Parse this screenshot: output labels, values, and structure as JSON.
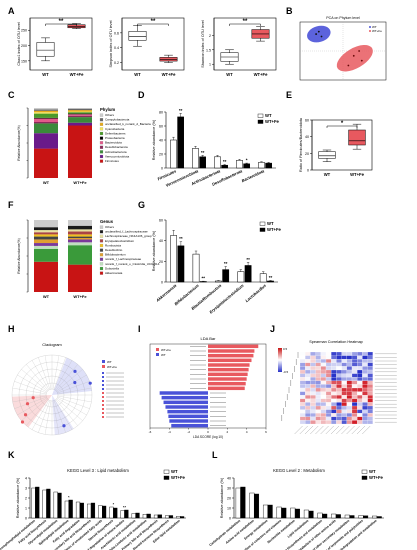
{
  "panels": [
    {
      "letter": "A"
    },
    {
      "letter": "B"
    },
    {
      "letter": "C"
    },
    {
      "letter": "D"
    },
    {
      "letter": "E"
    },
    {
      "letter": "F"
    },
    {
      "letter": "G"
    },
    {
      "letter": "H"
    },
    {
      "letter": "I"
    },
    {
      "letter": "J"
    },
    {
      "letter": "K"
    },
    {
      "letter": "L"
    }
  ],
  "groups": {
    "wt": "WT",
    "fe": "WT+Fe"
  },
  "colors": {
    "wt": "#ffffff",
    "fe": "#000000",
    "red": "#e8595f",
    "blue": "#4a52d8",
    "purple": "#6a1a8a"
  },
  "chart_data": [
    {
      "id": "A1",
      "type": "boxplot",
      "ylabel": "Chao1 index of OTU level",
      "categories": [
        "WT",
        "WT+Fe"
      ],
      "boxes": [
        {
          "min": 150,
          "q1": 165,
          "median": 185,
          "q3": 210,
          "max": 225
        },
        {
          "min": 255,
          "q1": 258,
          "median": 262,
          "q3": 268,
          "max": 272
        }
      ],
      "ylim": [
        120,
        290
      ],
      "yticks": [
        150,
        200,
        250
      ],
      "significance": "**",
      "colors": [
        "#ffffff",
        "#e8595f"
      ]
    },
    {
      "id": "A2",
      "type": "boxplot",
      "ylabel": "Simpson index of OTU level",
      "categories": [
        "WT",
        "WT+Fe"
      ],
      "boxes": [
        {
          "min": 0.42,
          "q1": 0.5,
          "median": 0.55,
          "q3": 0.62,
          "max": 0.7
        },
        {
          "min": 0.2,
          "q1": 0.22,
          "median": 0.24,
          "q3": 0.27,
          "max": 0.3
        }
      ],
      "ylim": [
        0.1,
        0.8
      ],
      "yticks": [
        0.2,
        0.4,
        0.6
      ],
      "significance": "**",
      "colors": [
        "#ffffff",
        "#e8595f"
      ]
    },
    {
      "id": "A3",
      "type": "boxplot",
      "ylabel": "Shannon index of OTU level",
      "categories": [
        "WT",
        "WT+Fe"
      ],
      "boxes": [
        {
          "min": 1.0,
          "q1": 1.1,
          "median": 1.25,
          "q3": 1.4,
          "max": 1.5
        },
        {
          "min": 1.8,
          "q1": 1.9,
          "median": 2.05,
          "q3": 2.2,
          "max": 2.3
        }
      ],
      "ylim": [
        0.8,
        2.6
      ],
      "yticks": [
        1.0,
        1.5,
        2.0
      ],
      "significance": "**",
      "colors": [
        "#ffffff",
        "#e8595f"
      ]
    },
    {
      "id": "B",
      "type": "scatter",
      "title": "PCA on Phylum level",
      "legend": [
        "WT",
        "WT+Fe"
      ],
      "series": [
        {
          "name": "WT",
          "points": [
            [
              -0.5,
              0.35
            ],
            [
              -0.4,
              0.3
            ],
            [
              -0.45,
              0.4
            ]
          ],
          "color": "#4a52d8"
        },
        {
          "name": "WT+Fe",
          "points": [
            [
              0.2,
              -0.1
            ],
            [
              0.35,
              -0.2
            ],
            [
              0.1,
              -0.3
            ],
            [
              0.3,
              0.0
            ]
          ],
          "color": "#e8595f"
        }
      ]
    },
    {
      "id": "C",
      "type": "stacked-bar",
      "legend_title": "Phylum",
      "categories": [
        "WT",
        "WT+Fe"
      ],
      "series": [
        {
          "name": "Others",
          "color": "#cccccc",
          "values": [
            2,
            1
          ]
        },
        {
          "name": "Campylobacterota",
          "color": "#666666",
          "values": [
            2,
            2
          ]
        },
        {
          "name": "unclassified_k_norank_d_Bacteria",
          "color": "#e5a91b",
          "values": [
            2,
            2
          ]
        },
        {
          "name": "Cyanobacteria",
          "color": "#f3e45c",
          "values": [
            2,
            1
          ]
        },
        {
          "name": "Deferribacteres",
          "color": "#4a9a2a",
          "values": [
            6,
            2
          ]
        },
        {
          "name": "Proteobacteria",
          "color": "#000000",
          "values": [
            1,
            1
          ]
        },
        {
          "name": "Bacteroidota",
          "color": "#e05a8a",
          "values": [
            5,
            2
          ]
        },
        {
          "name": "Desulfobacterota",
          "color": "#8a2a5a",
          "values": [
            2,
            2
          ]
        },
        {
          "name": "Actinobacteriota",
          "color": "#3a8a3a",
          "values": [
            14,
            8
          ]
        },
        {
          "name": "Verrucomicrobiota",
          "color": "#6a1a8a",
          "values": [
            22,
            4
          ]
        },
        {
          "name": "Firmicutes",
          "color": "#c81414",
          "values": [
            42,
            75
          ]
        }
      ],
      "ylabel": "Relative Abundance(%)"
    },
    {
      "id": "D",
      "type": "bar",
      "ylabel": "Relative abundance (%)",
      "categories": [
        "Firmicutes",
        "Verrucomicrobiota",
        "Actinobacteriota",
        "Desulfobacterota",
        "Bacteroidota"
      ],
      "series": [
        {
          "name": "WT",
          "values": [
            40,
            28,
            16,
            11,
            8
          ]
        },
        {
          "name": "WT+Fe",
          "values": [
            73,
            16,
            4,
            6,
            7
          ]
        }
      ],
      "errors": [
        [
          4,
          3,
          2,
          1.5,
          1
        ],
        [
          5,
          2,
          1,
          1,
          1
        ]
      ],
      "labels": [
        "**",
        "**",
        "**",
        "*",
        ""
      ],
      "ylim": [
        0,
        80
      ],
      "yticks": [
        0,
        20,
        40,
        60,
        80
      ]
    },
    {
      "id": "E",
      "type": "boxplot",
      "ylabel": "Ratio of Firmicutes/Bacteroidota",
      "categories": [
        "WT",
        "WT+Fe"
      ],
      "boxes": [
        {
          "min": 10,
          "q1": 14,
          "median": 17,
          "q3": 22,
          "max": 24
        },
        {
          "min": 25,
          "q1": 30,
          "median": 35,
          "q3": 48,
          "max": 55
        }
      ],
      "ylim": [
        0,
        60
      ],
      "yticks": [
        0,
        20,
        40,
        60
      ],
      "significance": "*",
      "colors": [
        "#ffffff",
        "#e8595f"
      ]
    },
    {
      "id": "F",
      "type": "stacked-bar",
      "legend_title": "Genus",
      "categories": [
        "WT",
        "WT+Fe"
      ],
      "series": [
        {
          "name": "Others",
          "color": "#cccccc",
          "values": [
            10,
            8
          ]
        },
        {
          "name": "unclassified_f_Lachnospiraceae",
          "color": "#1a1a1a",
          "values": [
            4,
            5
          ]
        },
        {
          "name": "Lachnospiraceae_NK4A136_group",
          "color": "#e8e0a0",
          "values": [
            3,
            3
          ]
        },
        {
          "name": "Erysipelatoclostridium",
          "color": "#a44",
          "values": [
            3,
            4
          ]
        },
        {
          "name": "Romboutsia",
          "color": "#f0c020",
          "values": [
            3,
            3
          ]
        },
        {
          "name": "Desulfovibrio",
          "color": "#444",
          "values": [
            4,
            2
          ]
        },
        {
          "name": "Bifidobacterium",
          "color": "#e0a030",
          "values": [
            5,
            2
          ]
        },
        {
          "name": "norank_f_Lachnospiraceae",
          "color": "#7a3a9a",
          "values": [
            4,
            4
          ]
        },
        {
          "name": "norank_f_norank_o_Clostridia_UCG-014",
          "color": "#c0e0c0",
          "values": [
            4,
            4
          ]
        },
        {
          "name": "Dubosiella",
          "color": "#3a9a3a",
          "values": [
            18,
            27
          ]
        },
        {
          "name": "Akkermansia",
          "color": "#c81414",
          "values": [
            42,
            38
          ]
        }
      ],
      "ylabel": "Relative Abundance(%)"
    },
    {
      "id": "G",
      "type": "bar",
      "ylabel": "Relative abundance (%)",
      "categories": [
        "Akkermansia",
        "Bifidobacterium",
        "Blautia/Romboutsia",
        "Erysipelatoclostridium",
        "Lactobacillus"
      ],
      "series": [
        {
          "name": "WT",
          "values": [
            45,
            27,
            1,
            10,
            8
          ]
        },
        {
          "name": "WT+Fe",
          "values": [
            35,
            0.5,
            12,
            16,
            1
          ]
        }
      ],
      "errors": [
        [
          5,
          3,
          0.5,
          2,
          2
        ],
        [
          4,
          0.3,
          3,
          3,
          0.5
        ]
      ],
      "labels": [
        "**",
        "**",
        "**",
        "**",
        "**"
      ],
      "ylim": [
        0,
        60
      ],
      "yticks": [
        0,
        20,
        40,
        60
      ]
    },
    {
      "id": "H",
      "type": "cladogram",
      "title": "Cladogram",
      "legend": [
        "WT",
        "WT+Fe"
      ]
    },
    {
      "id": "I",
      "type": "bar",
      "title": "LDA Bar",
      "orientation": "horizontal",
      "series": [
        {
          "name": "WT+Fe",
          "color": "#e8595f",
          "values": [
            5.2,
            4.8,
            4.7,
            4.5,
            4.3,
            4.2,
            4.1,
            4.0,
            3.9,
            3.8
          ]
        },
        {
          "name": "WT",
          "color": "#4a52d8",
          "values": [
            -5.0,
            -4.8,
            -4.6,
            -4.4,
            -4.2,
            -4.1,
            -4.0,
            -3.8
          ]
        }
      ],
      "xlabel": "LDA SCORE (log 10)",
      "xlim": [
        -6,
        6
      ]
    },
    {
      "id": "J",
      "type": "heatmap",
      "title": "Spearman Correlation Heatmap",
      "colorscale": [
        -0.5,
        0.5
      ]
    },
    {
      "id": "K",
      "type": "bar",
      "title": "KEGG Level 3 : Lipid metabolism",
      "ylabel": "Relative abundance (%)",
      "categories": [
        "Glycerophospholipid metabolism",
        "Fatty acid biosynthesis",
        "Glycerolipid metabolism",
        "Sphingolipid metabolism",
        "Fatty acid degradation",
        "Secondary bile acid biosynthesis",
        "Biosynthesis of unsaturated fatty acids",
        "Steroid biosynthesis",
        "Synthesis and degradation of ketone bodies",
        "Arachidonic acid metabolism",
        "alpha-Linolenic acid metabolism",
        "Primary bile acid biosynthesis",
        "Steroid hormone biosynthesis",
        "Ether lipid metabolism"
      ],
      "series": [
        {
          "name": "WT",
          "values": [
            3.0,
            2.8,
            2.6,
            1.7,
            1.6,
            1.4,
            1.25,
            1.1,
            0.75,
            0.45,
            0.38,
            0.3,
            0.22,
            0.18
          ]
        },
        {
          "name": "WT+Fe",
          "values": [
            3.1,
            2.9,
            2.5,
            1.8,
            1.5,
            1.5,
            1.2,
            1.0,
            0.8,
            0.5,
            0.4,
            0.32,
            0.25,
            0.15
          ]
        }
      ],
      "labels": [
        "",
        "",
        "",
        "*",
        "",
        "",
        "",
        "*",
        "**",
        "",
        "",
        "",
        "",
        ""
      ],
      "ylim": [
        0,
        4
      ],
      "yticks": [
        0,
        1,
        2,
        3,
        4
      ]
    },
    {
      "id": "L",
      "type": "bar",
      "title": "KEGG Level 2 : Metabolism",
      "ylabel": "Relative abundance (%)",
      "categories": [
        "Carbohydrate metabolism",
        "Amino acid metabolism",
        "Energy metabolism",
        "Metabolism of cofactors and vitamins",
        "Nucleotide metabolism",
        "Lipid metabolism",
        "Glycan biosynthesis and metabolism",
        "Metabolism of other amino acids",
        "Biosynthesis of other secondary metabolites",
        "Metabolism of terpenoids and polyketides",
        "Xenobiotics biodegradation and metabolism"
      ],
      "series": [
        {
          "name": "WT",
          "values": [
            30,
            25,
            13,
            11,
            10,
            8,
            5,
            4,
            3,
            2.5,
            2
          ]
        },
        {
          "name": "WT+Fe",
          "values": [
            31,
            24,
            13,
            10,
            9,
            7,
            4,
            3.5,
            2.5,
            2.2,
            1.5
          ]
        }
      ],
      "ylim": [
        0,
        40
      ],
      "yticks": [
        0,
        10,
        20,
        30,
        40
      ]
    }
  ]
}
